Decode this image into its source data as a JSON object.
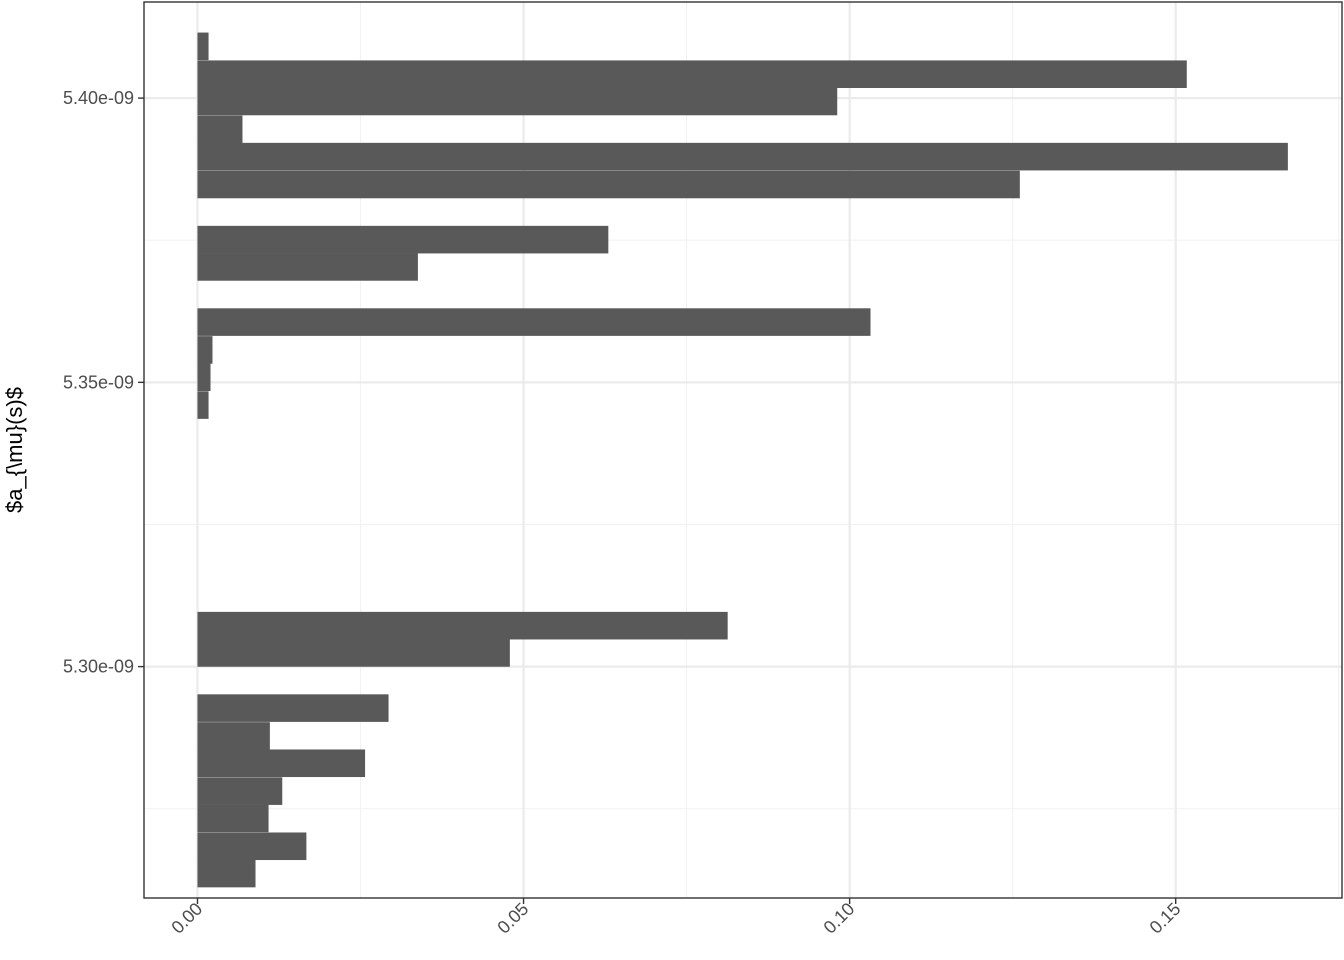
{
  "chart_data": {
    "type": "bar",
    "orientation": "horizontal",
    "title": "",
    "xlabel": "",
    "ylabel": "$a_{\\mu}(s)$",
    "xlim": [
      -0.0082,
      0.1755
    ],
    "ylim": [
      5.2593e-09,
      5.4169e-09
    ],
    "bin_width": 4.85e-12,
    "grid": true,
    "x_ticks": [
      {
        "value": 0.0,
        "label": "0.00"
      },
      {
        "value": 0.05,
        "label": "0.05"
      },
      {
        "value": 0.1,
        "label": "0.10"
      },
      {
        "value": 0.15,
        "label": "0.15"
      }
    ],
    "y_ticks": [
      {
        "value": 5.3e-09,
        "label": "5.30e-09"
      },
      {
        "value": 5.35e-09,
        "label": "5.35e-09"
      },
      {
        "value": 5.4e-09,
        "label": "5.40e-09"
      }
    ],
    "bars": [
      {
        "y": 5.2636e-09,
        "value": 0.0089
      },
      {
        "y": 5.2684e-09,
        "value": 0.0167
      },
      {
        "y": 5.2733e-09,
        "value": 0.0109
      },
      {
        "y": 5.2781e-09,
        "value": 0.013
      },
      {
        "y": 5.283e-09,
        "value": 0.0257
      },
      {
        "y": 5.2878e-09,
        "value": 0.0111
      },
      {
        "y": 5.2927e-09,
        "value": 0.0293
      },
      {
        "y": 5.3024e-09,
        "value": 0.0479
      },
      {
        "y": 5.3072e-09,
        "value": 0.0813
      },
      {
        "y": 5.346e-09,
        "value": 0.0017
      },
      {
        "y": 5.3509e-09,
        "value": 0.002
      },
      {
        "y": 5.3557e-09,
        "value": 0.0023
      },
      {
        "y": 5.3606e-09,
        "value": 0.1032
      },
      {
        "y": 5.3703e-09,
        "value": 0.0338
      },
      {
        "y": 5.3751e-09,
        "value": 0.063
      },
      {
        "y": 5.3848e-09,
        "value": 0.1261
      },
      {
        "y": 5.3897e-09,
        "value": 0.1672
      },
      {
        "y": 5.3945e-09,
        "value": 0.0069
      },
      {
        "y": 5.3994e-09,
        "value": 0.0981
      },
      {
        "y": 5.4042e-09,
        "value": 0.1517
      },
      {
        "y": 5.4091e-09,
        "value": 0.0017
      }
    ],
    "colors": {
      "bar": "#595959",
      "grid_major": "#ebebeb",
      "grid_minor": "#f2f2f2",
      "panel_border": "#333333",
      "tick_text": "#4d4d4d",
      "axis_title": "#000000"
    }
  }
}
